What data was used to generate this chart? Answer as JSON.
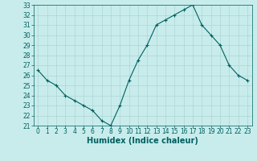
{
  "x": [
    0,
    1,
    2,
    3,
    4,
    5,
    6,
    7,
    8,
    9,
    10,
    11,
    12,
    13,
    14,
    15,
    16,
    17,
    18,
    19,
    20,
    21,
    22,
    23
  ],
  "y": [
    26.5,
    25.5,
    25.0,
    24.0,
    23.5,
    23.0,
    22.5,
    21.5,
    21.0,
    23.0,
    25.5,
    27.5,
    29.0,
    31.0,
    31.5,
    32.0,
    32.5,
    33.0,
    31.0,
    30.0,
    29.0,
    27.0,
    26.0,
    25.5
  ],
  "xlabel": "Humidex (Indice chaleur)",
  "ylim": [
    21,
    33
  ],
  "xlim": [
    -0.5,
    23.5
  ],
  "yticks": [
    21,
    22,
    23,
    24,
    25,
    26,
    27,
    28,
    29,
    30,
    31,
    32,
    33
  ],
  "xticks": [
    0,
    1,
    2,
    3,
    4,
    5,
    6,
    7,
    8,
    9,
    10,
    11,
    12,
    13,
    14,
    15,
    16,
    17,
    18,
    19,
    20,
    21,
    22,
    23
  ],
  "line_color": "#006060",
  "marker": "+",
  "bg_color": "#c8ecec",
  "grid_color": "#aed4d4",
  "axis_color": "#006060",
  "text_color": "#006060",
  "xlabel_fontsize": 7.0,
  "tick_fontsize": 5.5
}
